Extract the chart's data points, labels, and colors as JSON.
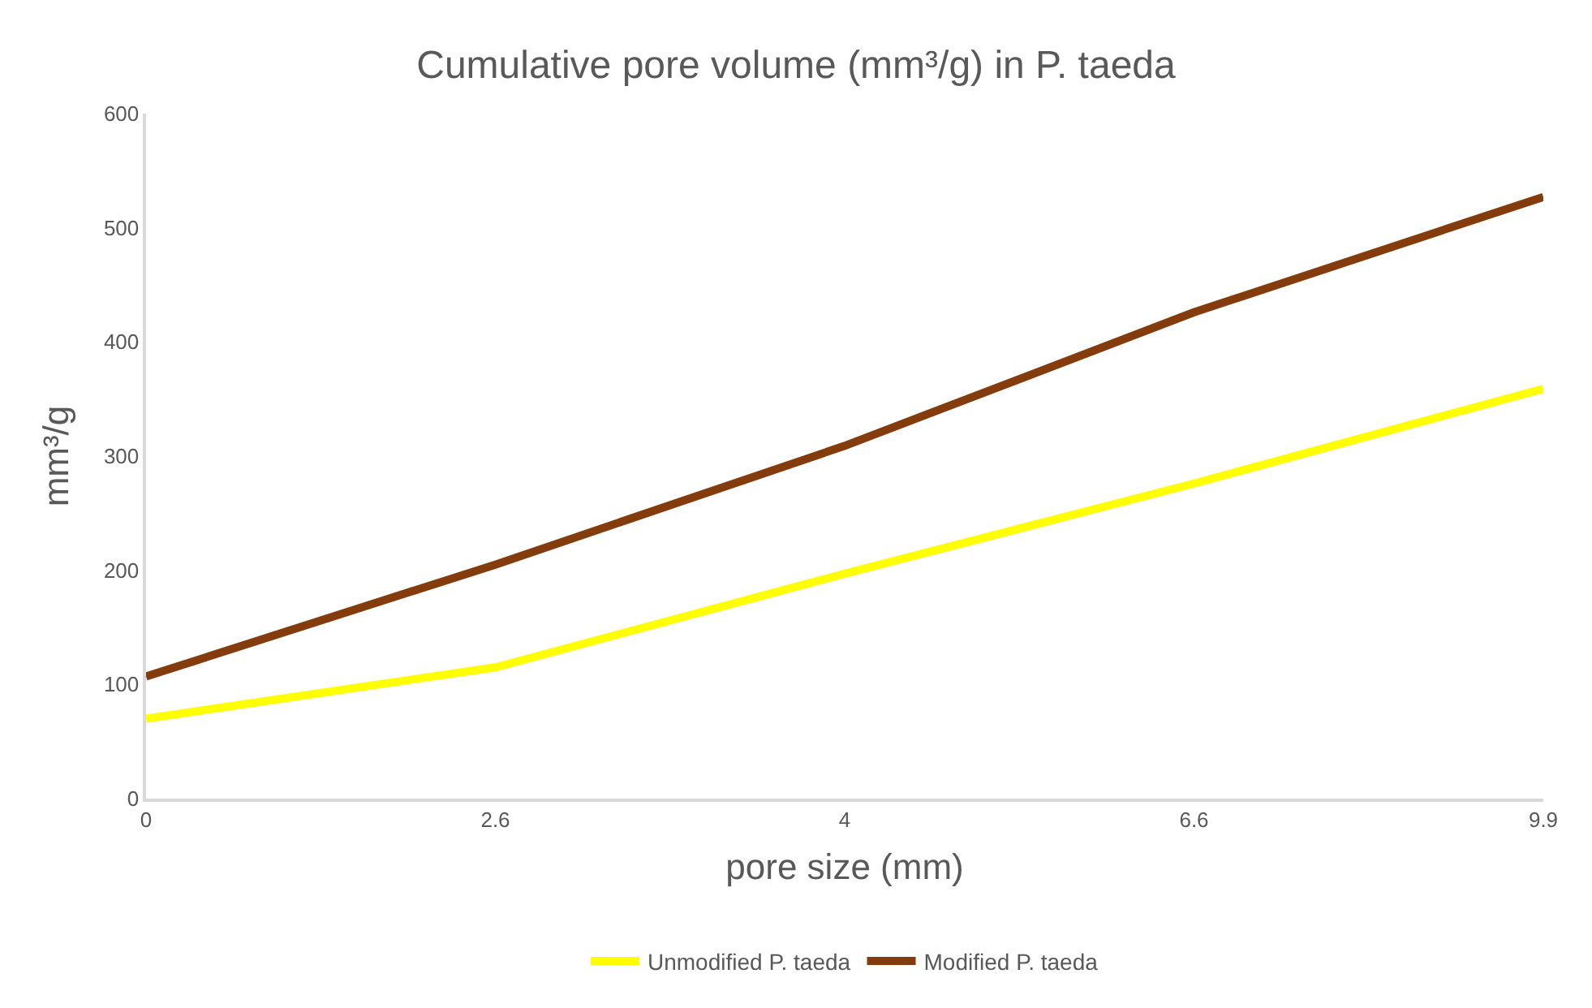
{
  "chart_data": {
    "type": "line",
    "title": "Cumulative pore volume (mm³/g) in P. taeda",
    "xlabel": "pore size (mm)",
    "ylabel": "mm³/g",
    "categories": [
      "0",
      "2.6",
      "4",
      "6.6",
      "9.9"
    ],
    "series": [
      {
        "name": "Unmodified P. taeda",
        "color": "#ffff00",
        "values": [
          70,
          115,
          197,
          276,
          359
        ]
      },
      {
        "name": "Modified P. taeda",
        "color": "#843c0c",
        "values": [
          107,
          205,
          309,
          426,
          527
        ]
      }
    ],
    "ylim": [
      0,
      600
    ],
    "yticks": [
      0,
      100,
      200,
      300,
      400,
      500,
      600
    ],
    "grid": false,
    "legend": "bottom",
    "marker": "none",
    "line_style": "solid"
  }
}
